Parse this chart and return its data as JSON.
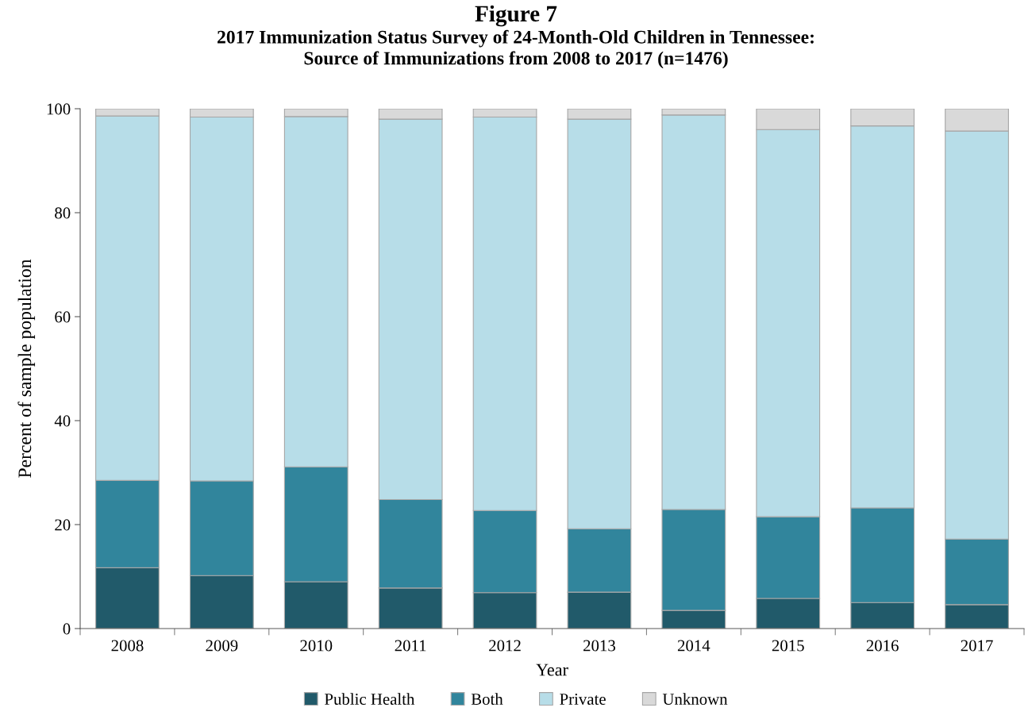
{
  "chart_data": {
    "type": "bar",
    "stacked": true,
    "title": "Figure 7",
    "subtitle": "2017 Immunization Status Survey of 24-Month-Old Children in Tennessee:\nSource of Immunizations from 2008 to 2017 (n=1476)",
    "xlabel": "Year",
    "ylabel": "Percent of sample population",
    "categories": [
      "2008",
      "2009",
      "2010",
      "2011",
      "2012",
      "2013",
      "2014",
      "2015",
      "2016",
      "2017"
    ],
    "series": [
      {
        "name": "Public Health",
        "color": "#215a6a",
        "values": [
          11.7,
          10.2,
          9.0,
          7.8,
          6.9,
          7.0,
          3.5,
          5.8,
          5.0,
          4.6
        ]
      },
      {
        "name": "Both",
        "color": "#31859c",
        "values": [
          16.8,
          18.2,
          22.1,
          17.0,
          15.8,
          12.2,
          19.4,
          15.7,
          18.2,
          12.6
        ]
      },
      {
        "name": "Private",
        "color": "#b7dde8",
        "values": [
          70.1,
          70.0,
          67.4,
          73.2,
          75.7,
          78.8,
          75.9,
          74.5,
          73.5,
          78.5
        ]
      },
      {
        "name": "Unknown",
        "color": "#d9d9d9",
        "values": [
          1.4,
          1.6,
          1.5,
          2.0,
          1.6,
          2.0,
          1.2,
          4.0,
          3.3,
          4.3
        ]
      }
    ],
    "ylim": [
      0,
      100
    ],
    "yticks": [
      0,
      20,
      40,
      60,
      80,
      100
    ],
    "legend": "bottom",
    "grid": false
  }
}
